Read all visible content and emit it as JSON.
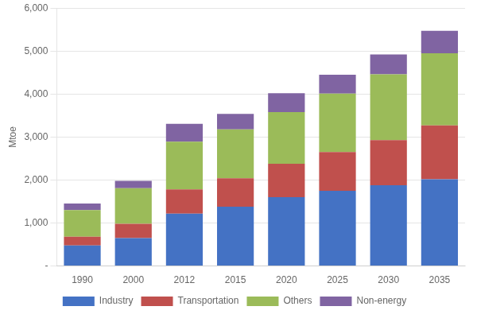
{
  "chart_data": {
    "type": "bar",
    "stacked": true,
    "categories": [
      "1990",
      "2000",
      "2012",
      "2015",
      "2020",
      "2025",
      "2030",
      "2035"
    ],
    "series": [
      {
        "name": "Industry",
        "color": "#4472C4",
        "values": [
          480,
          650,
          1220,
          1380,
          1600,
          1750,
          1880,
          2020
        ]
      },
      {
        "name": "Transportation",
        "color": "#C0504D",
        "values": [
          200,
          330,
          560,
          660,
          780,
          900,
          1050,
          1250
        ]
      },
      {
        "name": "Others",
        "color": "#9BBB59",
        "values": [
          620,
          830,
          1110,
          1140,
          1200,
          1360,
          1530,
          1680
        ]
      },
      {
        "name": "Non-energy",
        "color": "#8064A2",
        "values": [
          155,
          170,
          420,
          360,
          440,
          440,
          460,
          520
        ]
      }
    ],
    "ylabel": "Mtoe",
    "ylim": [
      0,
      6000
    ],
    "yticks": [
      {
        "value": 0,
        "label": "-"
      },
      {
        "value": 1000,
        "label": "1,000"
      },
      {
        "value": 2000,
        "label": "2,000"
      },
      {
        "value": 3000,
        "label": "3,000"
      },
      {
        "value": 4000,
        "label": "4,000"
      },
      {
        "value": 5000,
        "label": "5,000"
      },
      {
        "value": 6000,
        "label": "6,000"
      }
    ],
    "grid": true,
    "legend": "bottom"
  }
}
